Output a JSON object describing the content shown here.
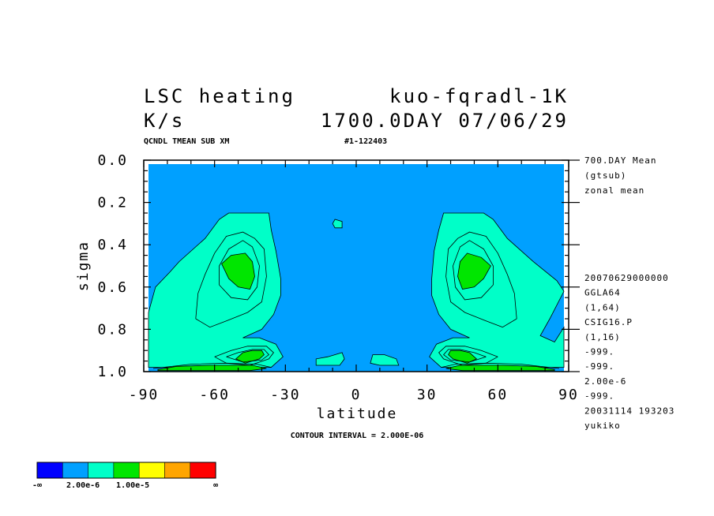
{
  "header": {
    "title_left": "LSC heating",
    "title_right": "kuo-fqradl-1K",
    "units": "K/s",
    "time_label": "1700.0DAY 07/06/29",
    "sub_left": "QCNDL TMEAN SUB XM",
    "sub_right": "#1-122403"
  },
  "side_info": {
    "top": [
      "700.DAY Mean",
      "(gtsub)",
      "zonal mean"
    ],
    "bottom": [
      "20070629000000",
      "GGLA64",
      "(1,64)",
      "CSIG16.P",
      "(1,16)",
      "-999.",
      "-999.",
      "2.00e-6",
      "-999.",
      "20031114 193203",
      "yukiko"
    ]
  },
  "footer": {
    "contour_interval": "CONTOUR INTERVAL = 2.000E-06"
  },
  "colorbar": {
    "colors": [
      "#0000ff",
      "#00a0ff",
      "#00ffc8",
      "#00e600",
      "#ffff00",
      "#ffa500",
      "#ff0000"
    ],
    "labels": [
      "-∞",
      "2.00e-6",
      "1.00e-5",
      "∞"
    ]
  },
  "chart_data": {
    "type": "heatmap",
    "subtype": "filled contour",
    "title": "LSC heating",
    "xlabel": "latitude",
    "ylabel": "sigma",
    "xlim": [
      -90,
      90
    ],
    "ylim": [
      1.0,
      0.0
    ],
    "y_inverted": true,
    "x_ticks": [
      -90,
      -60,
      -30,
      0,
      30,
      60,
      90
    ],
    "x_tick_labels": [
      "-90",
      "-60",
      "-30",
      "0",
      "30",
      "60",
      "90"
    ],
    "y_ticks": [
      0.0,
      0.2,
      0.4,
      0.6,
      0.8,
      1.0
    ],
    "y_tick_labels": [
      "0.0",
      "0.2",
      "0.4",
      "0.6",
      "0.8",
      "1.0"
    ],
    "contour_interval": 2e-06,
    "colors": {
      "background": "#00a0ff",
      "level_1": "#00ffc8",
      "level_2": "#00e600",
      "max_band": "#00e600"
    },
    "features": [
      {
        "name": "NH mid-troposphere maximum",
        "lat": 48,
        "sigma": 0.53
      },
      {
        "name": "SH mid-troposphere maximum",
        "lat": -50,
        "sigma": 0.53
      },
      {
        "name": "NH low-level maximum",
        "lat": 42,
        "sigma": 0.93
      },
      {
        "name": "SH low-level maximum",
        "lat": -45,
        "sigma": 0.93
      }
    ],
    "regions": [
      {
        "level": 1,
        "poly": [
          [
            -88,
            0.98
          ],
          [
            -88,
            0.72
          ],
          [
            -85,
            0.6
          ],
          [
            -79,
            0.53
          ],
          [
            -75,
            0.48
          ],
          [
            -64,
            0.37
          ],
          [
            -58,
            0.28
          ],
          [
            -54,
            0.25
          ],
          [
            -37,
            0.25
          ],
          [
            -36,
            0.33
          ],
          [
            -34,
            0.43
          ],
          [
            -32,
            0.56
          ],
          [
            -32,
            0.64
          ],
          [
            -35,
            0.73
          ],
          [
            -40,
            0.8
          ],
          [
            -48,
            0.84
          ],
          [
            -41,
            0.84
          ],
          [
            -34,
            0.87
          ],
          [
            -31,
            0.93
          ],
          [
            -36,
            0.98
          ]
        ]
      },
      {
        "level": 1,
        "poly": [
          [
            88,
            0.98
          ],
          [
            88,
            0.79
          ],
          [
            84,
            0.86
          ],
          [
            78,
            0.83
          ],
          [
            82,
            0.75
          ],
          [
            88,
            0.62
          ],
          [
            85,
            0.57
          ],
          [
            75,
            0.48
          ],
          [
            64,
            0.37
          ],
          [
            58,
            0.28
          ],
          [
            54,
            0.25
          ],
          [
            37,
            0.25
          ],
          [
            35,
            0.33
          ],
          [
            33,
            0.43
          ],
          [
            32,
            0.56
          ],
          [
            32,
            0.64
          ],
          [
            35,
            0.73
          ],
          [
            40,
            0.8
          ],
          [
            48,
            0.84
          ],
          [
            41,
            0.84
          ],
          [
            34,
            0.87
          ],
          [
            31,
            0.93
          ],
          [
            36,
            0.98
          ]
        ]
      },
      {
        "level": 1,
        "poly": [
          [
            -10,
            0.3
          ],
          [
            -9,
            0.28
          ],
          [
            -6,
            0.29
          ],
          [
            -6,
            0.32
          ],
          [
            -9,
            0.32
          ]
        ]
      },
      {
        "level": 1,
        "poly": [
          [
            -17,
            0.97
          ],
          [
            -17,
            0.94
          ],
          [
            -12,
            0.93
          ],
          [
            -6,
            0.91
          ],
          [
            -5,
            0.94
          ],
          [
            -7,
            0.97
          ],
          [
            -13,
            0.97
          ]
        ]
      },
      {
        "level": 1,
        "poly": [
          [
            6,
            0.96
          ],
          [
            7,
            0.92
          ],
          [
            12,
            0.92
          ],
          [
            17,
            0.94
          ],
          [
            18,
            0.97
          ],
          [
            10,
            0.97
          ]
        ]
      },
      {
        "level": 2,
        "poly": [
          [
            -57,
            0.49
          ],
          [
            -53,
            0.45
          ],
          [
            -47,
            0.44
          ],
          [
            -44,
            0.48
          ],
          [
            -43,
            0.55
          ],
          [
            -45,
            0.61
          ],
          [
            -50,
            0.6
          ],
          [
            -54,
            0.56
          ]
        ]
      },
      {
        "level": 2,
        "poly": [
          [
            57,
            0.5
          ],
          [
            53,
            0.46
          ],
          [
            47,
            0.44
          ],
          [
            44,
            0.48
          ],
          [
            43,
            0.55
          ],
          [
            45,
            0.61
          ],
          [
            50,
            0.6
          ],
          [
            54,
            0.56
          ]
        ]
      },
      {
        "level": 2,
        "poly": [
          [
            -51,
            0.94
          ],
          [
            -48,
            0.91
          ],
          [
            -44,
            0.9
          ],
          [
            -40,
            0.9
          ],
          [
            -39,
            0.92
          ],
          [
            -41,
            0.94
          ],
          [
            -47,
            0.96
          ]
        ]
      },
      {
        "level": 2,
        "poly": [
          [
            51,
            0.94
          ],
          [
            48,
            0.91
          ],
          [
            44,
            0.9
          ],
          [
            40,
            0.9
          ],
          [
            39,
            0.92
          ],
          [
            41,
            0.94
          ],
          [
            47,
            0.96
          ]
        ]
      },
      {
        "level": 2,
        "poly": [
          [
            -84,
            0.99
          ],
          [
            -76,
            0.975
          ],
          [
            -62,
            0.97
          ],
          [
            -44,
            0.97
          ],
          [
            -38,
            0.985
          ],
          [
            -45,
            0.995
          ],
          [
            -84,
            0.995
          ]
        ]
      },
      {
        "level": 2,
        "poly": [
          [
            84,
            0.99
          ],
          [
            76,
            0.975
          ],
          [
            62,
            0.97
          ],
          [
            44,
            0.97
          ],
          [
            38,
            0.985
          ],
          [
            45,
            0.995
          ],
          [
            84,
            0.995
          ]
        ]
      }
    ],
    "contour_lines": [
      [
        [
          -68,
          0.75
        ],
        [
          -67,
          0.63
        ],
        [
          -64,
          0.54
        ],
        [
          -60,
          0.44
        ],
        [
          -55,
          0.36
        ],
        [
          -48,
          0.34
        ],
        [
          -43,
          0.37
        ],
        [
          -39,
          0.42
        ],
        [
          -38,
          0.55
        ],
        [
          -40,
          0.67
        ],
        [
          -46,
          0.72
        ],
        [
          -55,
          0.76
        ],
        [
          -62,
          0.79
        ],
        [
          -68,
          0.75
        ]
      ],
      [
        [
          68,
          0.75
        ],
        [
          67,
          0.63
        ],
        [
          64,
          0.54
        ],
        [
          60,
          0.44
        ],
        [
          55,
          0.36
        ],
        [
          48,
          0.34
        ],
        [
          43,
          0.37
        ],
        [
          39,
          0.42
        ],
        [
          38,
          0.55
        ],
        [
          40,
          0.67
        ],
        [
          46,
          0.72
        ],
        [
          55,
          0.76
        ],
        [
          62,
          0.79
        ],
        [
          68,
          0.75
        ]
      ],
      [
        [
          -58,
          0.59
        ],
        [
          -58,
          0.5
        ],
        [
          -54,
          0.42
        ],
        [
          -48,
          0.38
        ],
        [
          -44,
          0.41
        ],
        [
          -41,
          0.5
        ],
        [
          -42,
          0.6
        ],
        [
          -46,
          0.66
        ],
        [
          -53,
          0.65
        ],
        [
          -58,
          0.59
        ]
      ],
      [
        [
          58,
          0.59
        ],
        [
          58,
          0.5
        ],
        [
          54,
          0.42
        ],
        [
          48,
          0.38
        ],
        [
          44,
          0.41
        ],
        [
          41,
          0.5
        ],
        [
          42,
          0.6
        ],
        [
          46,
          0.66
        ],
        [
          53,
          0.65
        ],
        [
          58,
          0.59
        ]
      ],
      [
        [
          -60,
          0.93
        ],
        [
          -53,
          0.9
        ],
        [
          -46,
          0.88
        ],
        [
          -38,
          0.88
        ],
        [
          -35,
          0.91
        ],
        [
          -37,
          0.94
        ],
        [
          -45,
          0.97
        ],
        [
          -55,
          0.96
        ],
        [
          -60,
          0.93
        ]
      ],
      [
        [
          60,
          0.93
        ],
        [
          53,
          0.9
        ],
        [
          46,
          0.88
        ],
        [
          38,
          0.88
        ],
        [
          35,
          0.91
        ],
        [
          37,
          0.94
        ],
        [
          45,
          0.97
        ],
        [
          55,
          0.96
        ],
        [
          60,
          0.93
        ]
      ],
      [
        [
          -55,
          0.93
        ],
        [
          -50,
          0.91
        ],
        [
          -44,
          0.895
        ],
        [
          -39,
          0.895
        ],
        [
          -37,
          0.92
        ],
        [
          -40,
          0.945
        ],
        [
          -48,
          0.955
        ],
        [
          -55,
          0.93
        ]
      ],
      [
        [
          55,
          0.93
        ],
        [
          50,
          0.91
        ],
        [
          44,
          0.895
        ],
        [
          39,
          0.895
        ],
        [
          37,
          0.92
        ],
        [
          40,
          0.945
        ],
        [
          48,
          0.955
        ],
        [
          55,
          0.93
        ]
      ],
      [
        [
          -86,
          0.985
        ],
        [
          -70,
          0.965
        ],
        [
          -55,
          0.96
        ],
        [
          -42,
          0.965
        ],
        [
          -36,
          0.98
        ]
      ],
      [
        [
          86,
          0.985
        ],
        [
          70,
          0.965
        ],
        [
          55,
          0.96
        ],
        [
          42,
          0.965
        ],
        [
          36,
          0.98
        ]
      ]
    ]
  }
}
